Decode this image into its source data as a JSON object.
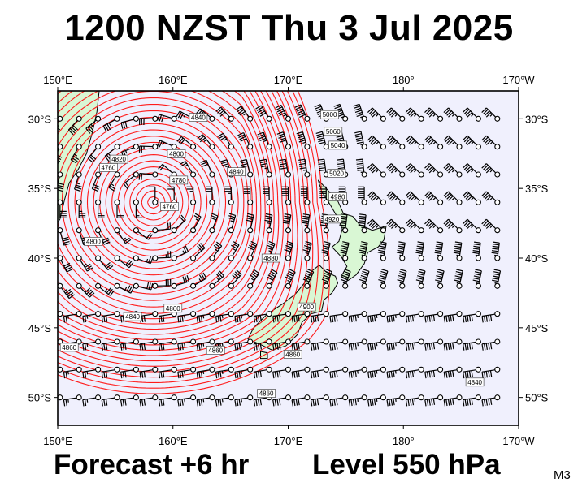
{
  "header": {
    "title": "1200 NZST Thu 3 Jul 2025"
  },
  "footer": {
    "forecast": "Forecast +6 hr",
    "level": "Level 550 hPa",
    "model": "M3"
  },
  "map": {
    "projection": "lat-lon",
    "lon_range": [
      150,
      190
    ],
    "lat_range": [
      -52,
      -28
    ],
    "colors": {
      "ocean": "#f0f0fd",
      "land": "#d9f7d4",
      "contour": "#ff1a1a",
      "coast": "#000000"
    },
    "lon_ticks": [
      {
        "lon": 150,
        "label": "150°E"
      },
      {
        "lon": 160,
        "label": "160°E"
      },
      {
        "lon": 170,
        "label": "170°E"
      },
      {
        "lon": 180,
        "label": "180°"
      },
      {
        "lon": 190,
        "label": "170°W"
      }
    ],
    "lat_ticks": [
      {
        "lat": -30,
        "label": "30°S"
      },
      {
        "lat": -35,
        "label": "35°S"
      },
      {
        "lat": -40,
        "label": "40°S"
      },
      {
        "lat": -45,
        "label": "45°S"
      },
      {
        "lat": -50,
        "label": "50°S"
      }
    ],
    "low_centre": {
      "lon": 158.3,
      "lat": -36.0
    },
    "contour_labels": [
      {
        "text": "4760",
        "lon": 159.7,
        "lat": -36.3
      },
      {
        "text": "4760",
        "lon": 154.4,
        "lat": -33.5
      },
      {
        "text": "4800",
        "lon": 153.1,
        "lat": -38.8
      },
      {
        "text": "4820",
        "lon": 155.3,
        "lat": -32.9
      },
      {
        "text": "4800",
        "lon": 160.3,
        "lat": -32.5
      },
      {
        "text": "4780",
        "lon": 160.5,
        "lat": -34.4
      },
      {
        "text": "4840",
        "lon": 165.5,
        "lat": -33.8
      },
      {
        "text": "4840",
        "lon": 162.2,
        "lat": -29.9
      },
      {
        "text": "4860",
        "lon": 160.0,
        "lat": -43.6
      },
      {
        "text": "4840",
        "lon": 156.5,
        "lat": -44.2
      },
      {
        "text": "4860",
        "lon": 151.0,
        "lat": -46.4
      },
      {
        "text": "4860",
        "lon": 163.7,
        "lat": -46.6
      },
      {
        "text": "4860",
        "lon": 170.4,
        "lat": -46.9
      },
      {
        "text": "4860",
        "lon": 168.1,
        "lat": -49.7
      },
      {
        "text": "4840",
        "lon": 186.2,
        "lat": -48.9
      },
      {
        "text": "5000",
        "lon": 173.6,
        "lat": -29.7
      },
      {
        "text": "5060",
        "lon": 173.9,
        "lat": -30.9
      },
      {
        "text": "5040",
        "lon": 174.3,
        "lat": -31.9
      },
      {
        "text": "5020",
        "lon": 174.2,
        "lat": -33.9
      },
      {
        "text": "4980",
        "lon": 174.3,
        "lat": -35.6
      },
      {
        "text": "4920",
        "lon": 173.8,
        "lat": -37.2
      },
      {
        "text": "4900",
        "lon": 171.6,
        "lat": -43.5
      },
      {
        "text": "4880",
        "lon": 168.5,
        "lat": -40.0
      }
    ],
    "wind_barbs": "grid of wind barbs (station circles with barbs and pennants)"
  }
}
